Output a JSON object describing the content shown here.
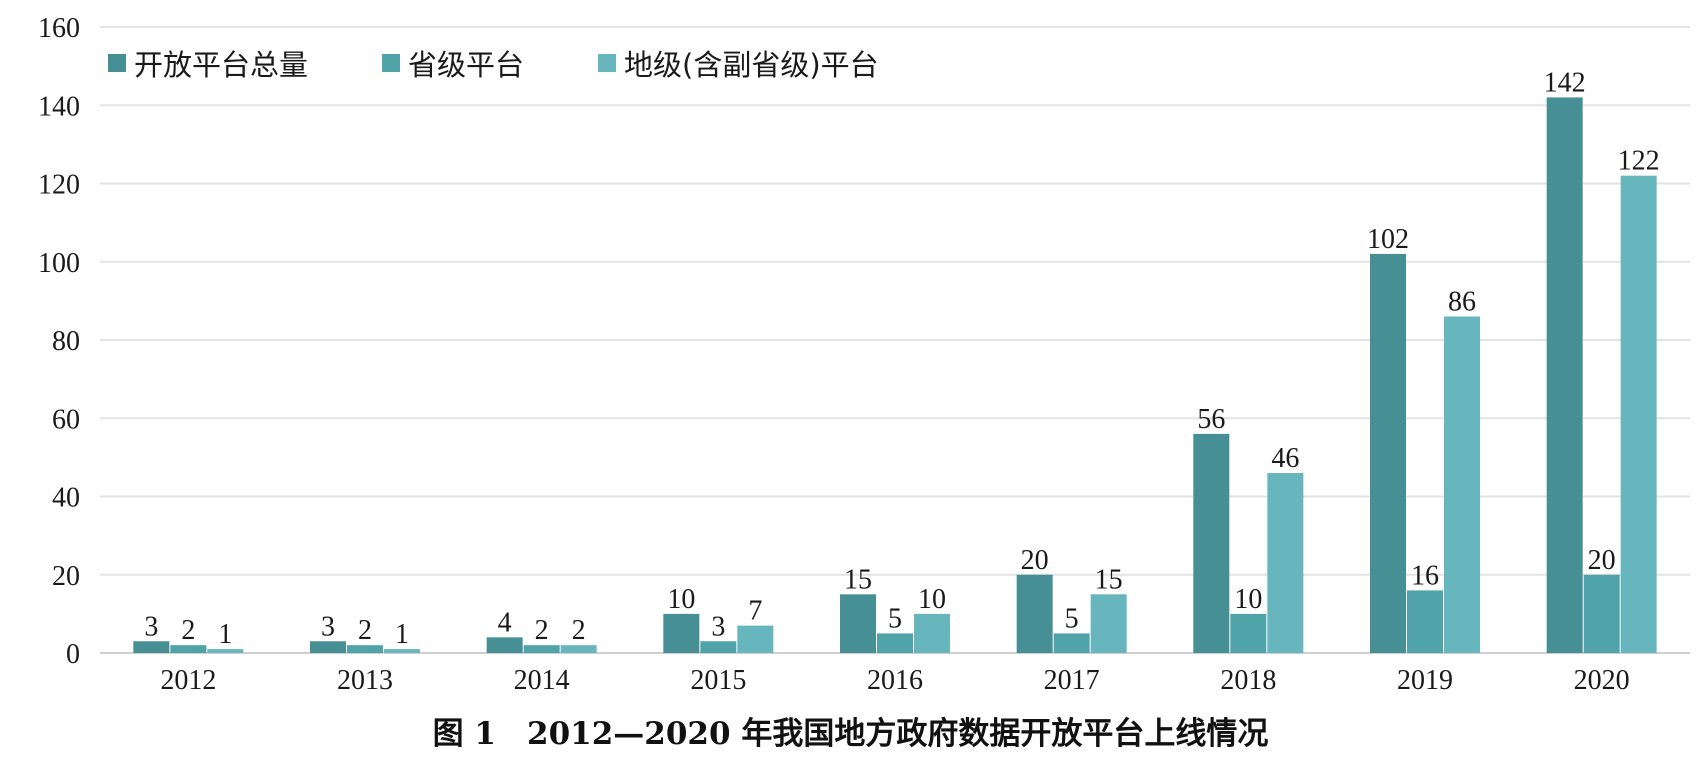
{
  "chart_data": {
    "type": "bar",
    "categories": [
      "2012",
      "2013",
      "2014",
      "2015",
      "2016",
      "2017",
      "2018",
      "2019",
      "2020"
    ],
    "series": [
      {
        "name": "开放平台总量",
        "color": "#468f94",
        "values": [
          3,
          3,
          4,
          10,
          15,
          20,
          56,
          102,
          142
        ]
      },
      {
        "name": "省级平台",
        "color": "#4fa3a9",
        "values": [
          2,
          2,
          2,
          3,
          5,
          5,
          10,
          16,
          20
        ]
      },
      {
        "name": "地级(含副省级)平台",
        "color": "#68b6bd",
        "values": [
          1,
          1,
          2,
          7,
          10,
          15,
          46,
          86,
          122
        ]
      }
    ],
    "ylim": [
      0,
      160
    ],
    "yticks": [
      0,
      20,
      40,
      60,
      80,
      100,
      120,
      140,
      160
    ],
    "grid": true,
    "legend_position": "top-left",
    "title": "图 1　2012—2020 年我国地方政府数据开放平台上线情况"
  }
}
